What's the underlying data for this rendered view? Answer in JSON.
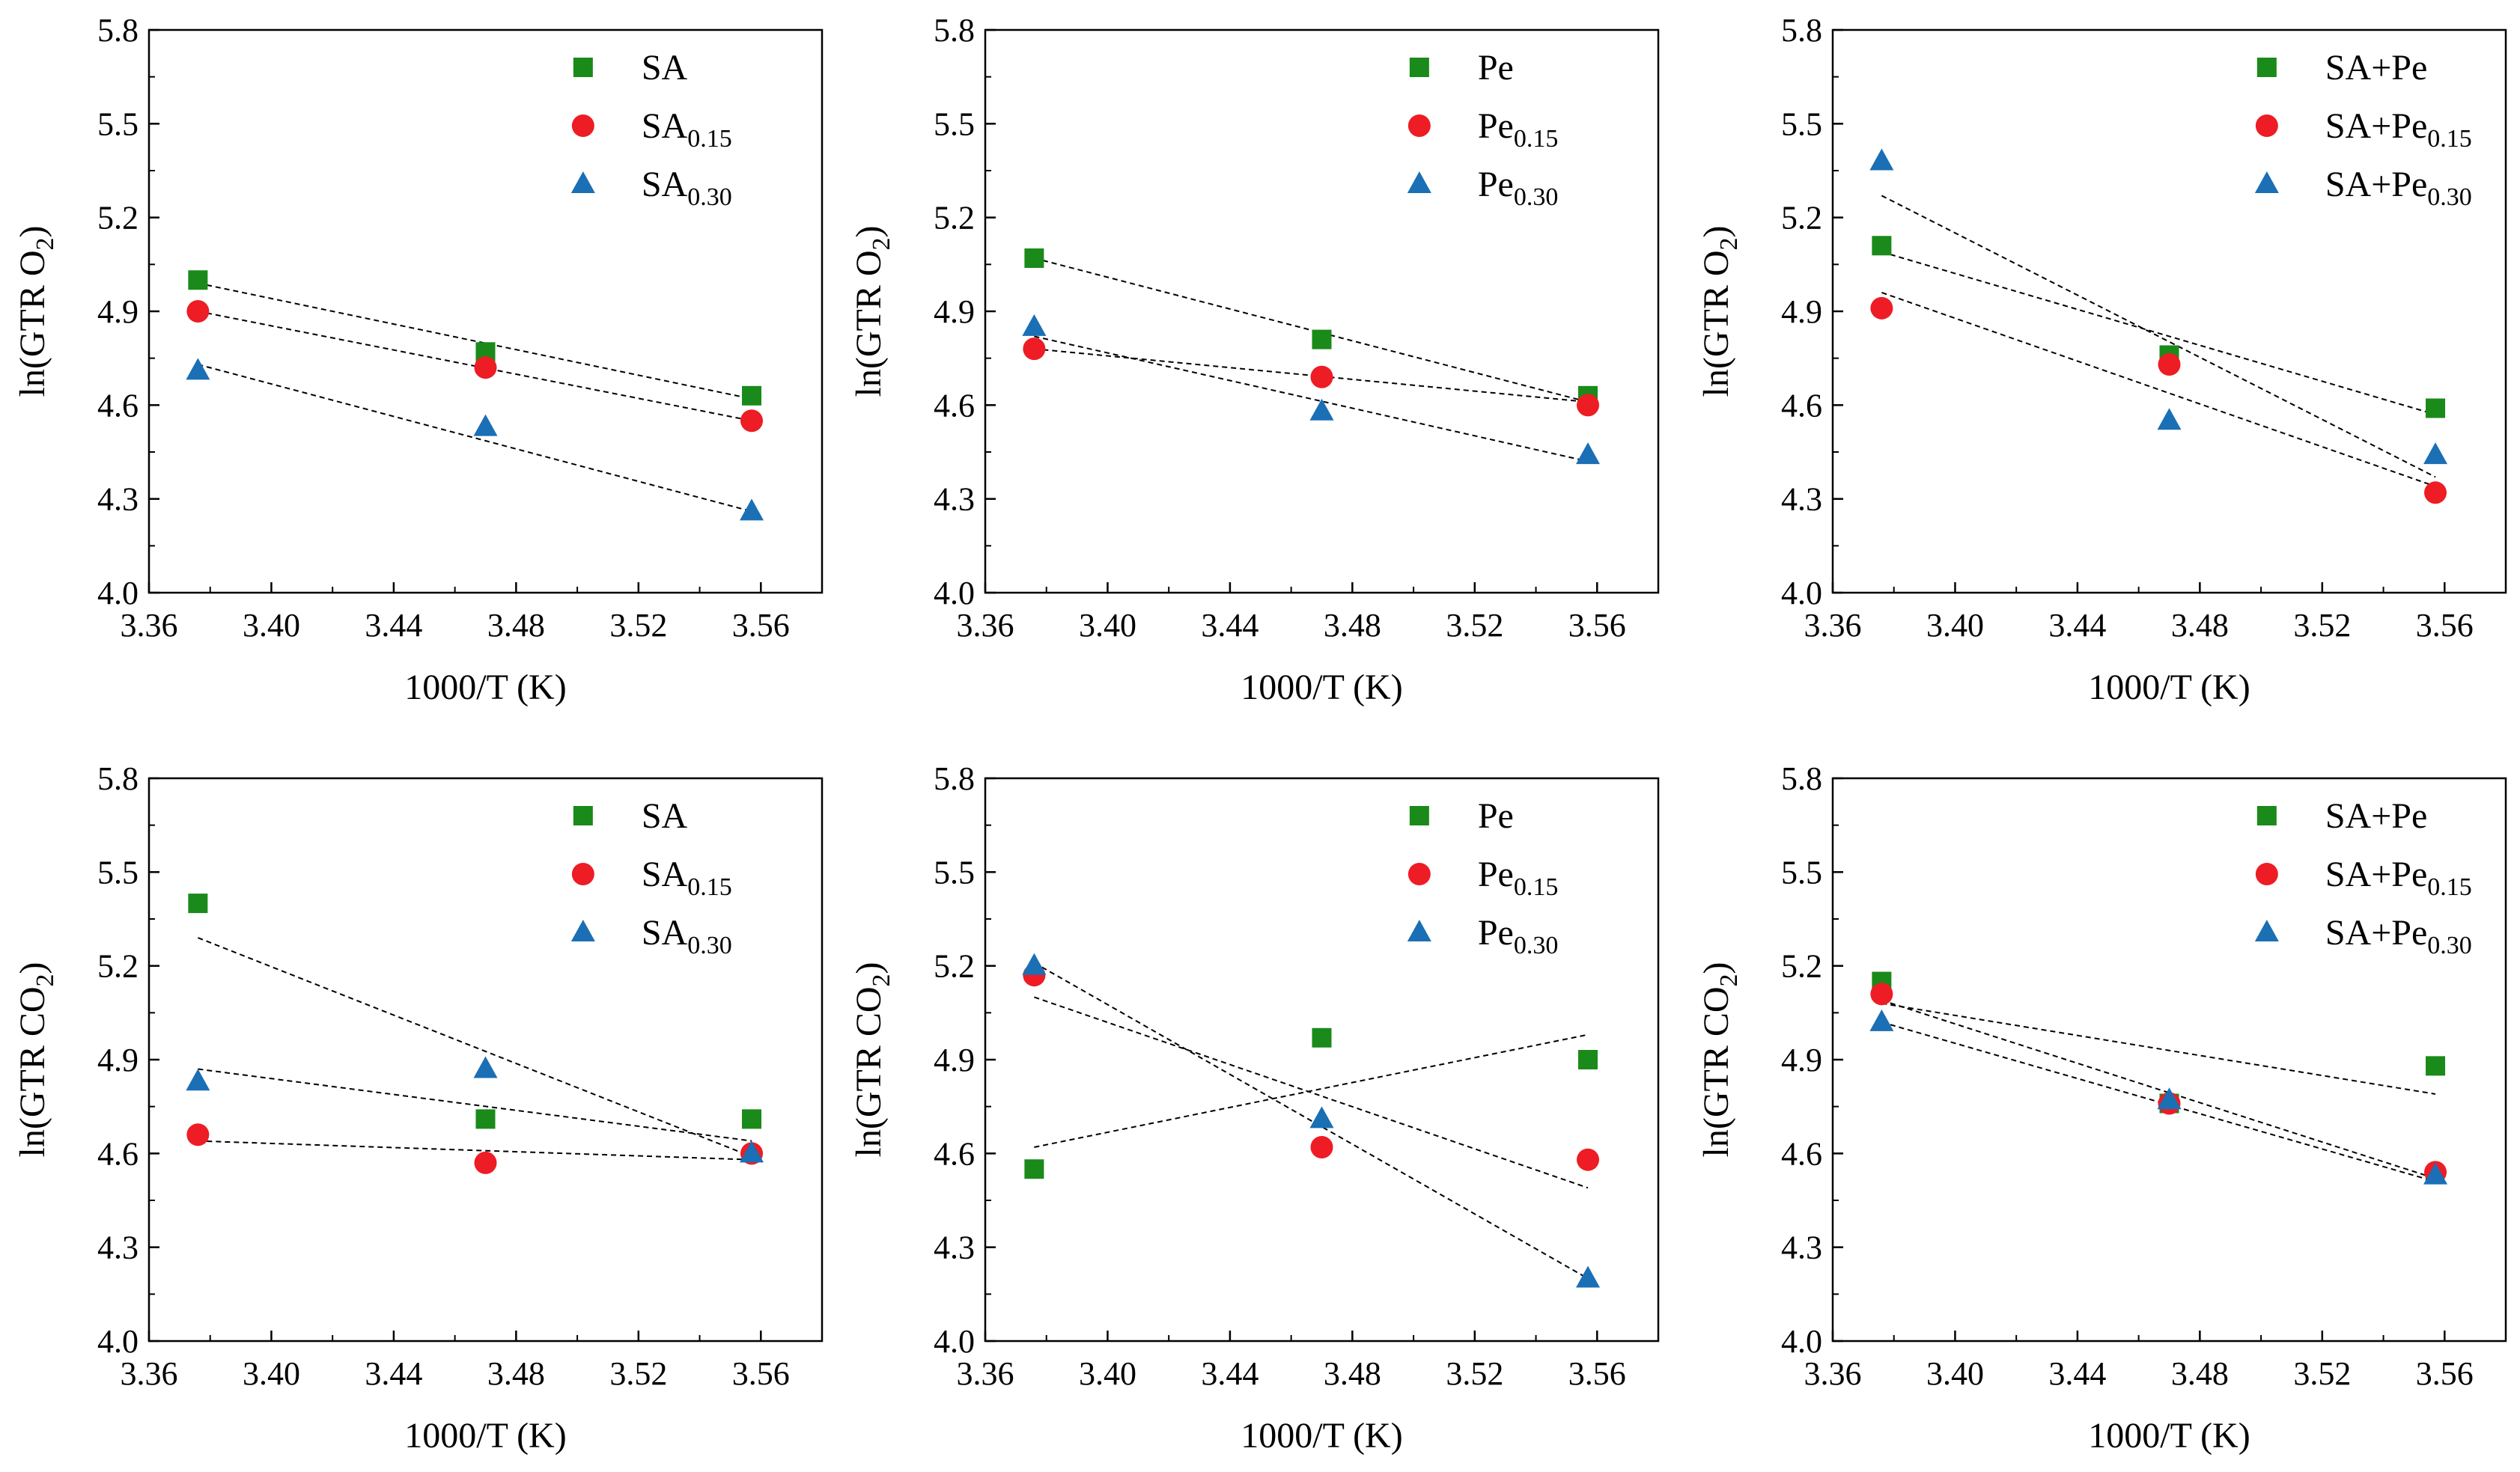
{
  "colors": {
    "square": "#1a8a1a",
    "circle": "#ee1c24",
    "triangle": "#1a6fb5",
    "fit": "#000000"
  },
  "chart_data": [
    {
      "type": "scatter",
      "xlabel": "1000/T (K)",
      "ylabel": {
        "pre": "ln(GTR O",
        "sub": "2",
        "post": ")"
      },
      "xlim": [
        3.36,
        3.58
      ],
      "ylim": [
        4.0,
        5.8
      ],
      "xticks": [
        "3.36",
        "3.40",
        "3.44",
        "3.48",
        "3.52",
        "3.56"
      ],
      "yticks": [
        "4.0",
        "4.3",
        "4.6",
        "4.9",
        "5.2",
        "5.5",
        "5.8"
      ],
      "legend_position": "top-right",
      "series": [
        {
          "name": {
            "main": "SA",
            "sub": ""
          },
          "marker": "square",
          "x": [
            3.376,
            3.47,
            3.557
          ],
          "y": [
            5.0,
            4.77,
            4.63
          ],
          "fit": [
            4.99,
            4.62
          ]
        },
        {
          "name": {
            "main": "SA",
            "sub": "0.15"
          },
          "marker": "circle",
          "x": [
            3.376,
            3.47,
            3.557
          ],
          "y": [
            4.9,
            4.72,
            4.55
          ],
          "fit": [
            4.9,
            4.55
          ]
        },
        {
          "name": {
            "main": "SA",
            "sub": "0.30"
          },
          "marker": "triangle",
          "x": [
            3.376,
            3.47,
            3.557
          ],
          "y": [
            4.71,
            4.53,
            4.26
          ],
          "fit": [
            4.73,
            4.26
          ]
        }
      ]
    },
    {
      "type": "scatter",
      "xlabel": "1000/T (K)",
      "ylabel": {
        "pre": "ln(GTR O",
        "sub": "2",
        "post": ")"
      },
      "xlim": [
        3.36,
        3.58
      ],
      "ylim": [
        4.0,
        5.8
      ],
      "xticks": [
        "3.36",
        "3.40",
        "3.44",
        "3.48",
        "3.52",
        "3.56"
      ],
      "yticks": [
        "4.0",
        "4.3",
        "4.6",
        "4.9",
        "5.2",
        "5.5",
        "5.8"
      ],
      "legend_position": "top-right",
      "series": [
        {
          "name": {
            "main": "Pe",
            "sub": ""
          },
          "marker": "square",
          "x": [
            3.376,
            3.47,
            3.557
          ],
          "y": [
            5.07,
            4.81,
            4.63
          ],
          "fit": [
            5.07,
            4.61
          ]
        },
        {
          "name": {
            "main": "Pe",
            "sub": "0.15"
          },
          "marker": "circle",
          "x": [
            3.376,
            3.47,
            3.557
          ],
          "y": [
            4.78,
            4.69,
            4.6
          ],
          "fit": [
            4.78,
            4.61
          ]
        },
        {
          "name": {
            "main": "Pe",
            "sub": "0.30"
          },
          "marker": "triangle",
          "x": [
            3.376,
            3.47,
            3.557
          ],
          "y": [
            4.85,
            4.58,
            4.44
          ],
          "fit": [
            4.82,
            4.42
          ]
        }
      ]
    },
    {
      "type": "scatter",
      "xlabel": "1000/T (K)",
      "ylabel": {
        "pre": "ln(GTR O",
        "sub": "2",
        "post": ")"
      },
      "xlim": [
        3.36,
        3.58
      ],
      "ylim": [
        4.0,
        5.8
      ],
      "xticks": [
        "3.36",
        "3.40",
        "3.44",
        "3.48",
        "3.52",
        "3.56"
      ],
      "yticks": [
        "4.0",
        "4.3",
        "4.6",
        "4.9",
        "5.2",
        "5.5",
        "5.8"
      ],
      "legend_position": "top-right",
      "series": [
        {
          "name": {
            "main": "SA+Pe",
            "sub": ""
          },
          "marker": "square",
          "x": [
            3.376,
            3.47,
            3.557
          ],
          "y": [
            5.11,
            4.76,
            4.59
          ],
          "fit": [
            5.09,
            4.57
          ]
        },
        {
          "name": {
            "main": "SA+Pe",
            "sub": "0.15"
          },
          "marker": "circle",
          "x": [
            3.376,
            3.47,
            3.557
          ],
          "y": [
            4.91,
            4.73,
            4.32
          ],
          "fit": [
            4.96,
            4.34
          ]
        },
        {
          "name": {
            "main": "SA+Pe",
            "sub": "0.30"
          },
          "marker": "triangle",
          "x": [
            3.376,
            3.47,
            3.557
          ],
          "y": [
            5.38,
            4.55,
            4.44
          ],
          "fit": [
            5.27,
            4.37
          ]
        }
      ]
    },
    {
      "type": "scatter",
      "xlabel": "1000/T (K)",
      "ylabel": {
        "pre": "ln(GTR CO",
        "sub": "2",
        "post": ")"
      },
      "xlim": [
        3.36,
        3.58
      ],
      "ylim": [
        4.0,
        5.8
      ],
      "xticks": [
        "3.36",
        "3.40",
        "3.44",
        "3.48",
        "3.52",
        "3.56"
      ],
      "yticks": [
        "4.0",
        "4.3",
        "4.6",
        "4.9",
        "5.2",
        "5.5",
        "5.8"
      ],
      "legend_position": "top-right",
      "series": [
        {
          "name": {
            "main": "SA",
            "sub": ""
          },
          "marker": "square",
          "x": [
            3.376,
            3.47,
            3.557
          ],
          "y": [
            5.4,
            4.71,
            4.71
          ],
          "fit": [
            5.29,
            4.59
          ]
        },
        {
          "name": {
            "main": "SA",
            "sub": "0.15"
          },
          "marker": "circle",
          "x": [
            3.376,
            3.47,
            3.557
          ],
          "y": [
            4.66,
            4.57,
            4.6
          ],
          "fit": [
            4.64,
            4.58
          ]
        },
        {
          "name": {
            "main": "SA",
            "sub": "0.30"
          },
          "marker": "triangle",
          "x": [
            3.376,
            3.47,
            3.557
          ],
          "y": [
            4.83,
            4.87,
            4.6
          ],
          "fit": [
            4.87,
            4.64
          ]
        }
      ]
    },
    {
      "type": "scatter",
      "xlabel": "1000/T (K)",
      "ylabel": {
        "pre": "ln(GTR CO",
        "sub": "2",
        "post": ")"
      },
      "xlim": [
        3.36,
        3.58
      ],
      "ylim": [
        4.0,
        5.8
      ],
      "xticks": [
        "3.36",
        "3.40",
        "3.44",
        "3.48",
        "3.52",
        "3.56"
      ],
      "yticks": [
        "4.0",
        "4.3",
        "4.6",
        "4.9",
        "5.2",
        "5.5",
        "5.8"
      ],
      "legend_position": "top-right",
      "series": [
        {
          "name": {
            "main": "Pe",
            "sub": ""
          },
          "marker": "square",
          "x": [
            3.376,
            3.47,
            3.557
          ],
          "y": [
            4.55,
            4.97,
            4.9
          ],
          "fit": [
            4.62,
            4.98
          ]
        },
        {
          "name": {
            "main": "Pe",
            "sub": "0.15"
          },
          "marker": "circle",
          "x": [
            3.376,
            3.47,
            3.557
          ],
          "y": [
            5.17,
            4.62,
            4.58
          ],
          "fit": [
            5.1,
            4.49
          ]
        },
        {
          "name": {
            "main": "Pe",
            "sub": "0.30"
          },
          "marker": "triangle",
          "x": [
            3.376,
            3.47,
            3.557
          ],
          "y": [
            5.2,
            4.71,
            4.2
          ],
          "fit": [
            5.21,
            4.2
          ]
        }
      ]
    },
    {
      "type": "scatter",
      "xlabel": "1000/T (K)",
      "ylabel": {
        "pre": "ln(GTR CO",
        "sub": "2",
        "post": ")"
      },
      "xlim": [
        3.36,
        3.58
      ],
      "ylim": [
        4.0,
        5.8
      ],
      "xticks": [
        "3.36",
        "3.40",
        "3.44",
        "3.48",
        "3.52",
        "3.56"
      ],
      "yticks": [
        "4.0",
        "4.3",
        "4.6",
        "4.9",
        "5.2",
        "5.5",
        "5.8"
      ],
      "legend_position": "top-right",
      "series": [
        {
          "name": {
            "main": "SA+Pe",
            "sub": ""
          },
          "marker": "square",
          "x": [
            3.376,
            3.47,
            3.557
          ],
          "y": [
            5.15,
            4.76,
            4.88
          ],
          "fit": [
            5.08,
            4.79
          ]
        },
        {
          "name": {
            "main": "SA+Pe",
            "sub": "0.15"
          },
          "marker": "circle",
          "x": [
            3.376,
            3.47,
            3.557
          ],
          "y": [
            5.11,
            4.76,
            4.54
          ],
          "fit": [
            5.09,
            4.52
          ]
        },
        {
          "name": {
            "main": "SA+Pe",
            "sub": "0.30"
          },
          "marker": "triangle",
          "x": [
            3.376,
            3.47,
            3.557
          ],
          "y": [
            5.02,
            4.77,
            4.53
          ],
          "fit": [
            5.02,
            4.51
          ]
        }
      ]
    }
  ]
}
